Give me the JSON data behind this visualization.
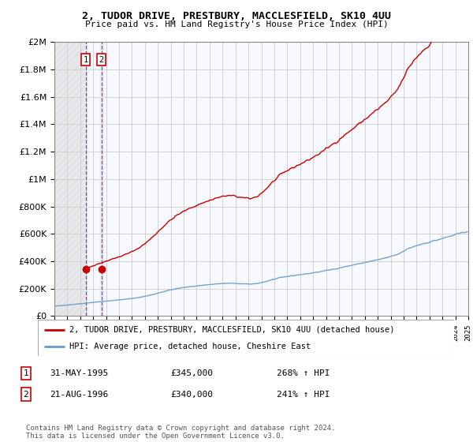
{
  "title": "2, TUDOR DRIVE, PRESTBURY, MACCLESFIELD, SK10 4UU",
  "subtitle": "Price paid vs. HM Land Registry's House Price Index (HPI)",
  "ylim": [
    0,
    2000000
  ],
  "yticks": [
    0,
    200000,
    400000,
    600000,
    800000,
    1000000,
    1200000,
    1400000,
    1600000,
    1800000,
    2000000
  ],
  "property_color": "#cc0000",
  "hpi_color": "#6699cc",
  "bg_color": "#f8f8ff",
  "grid_color": "#cccccc",
  "sale1_year": 1995.42,
  "sale1_price": 345000,
  "sale2_year": 1996.64,
  "sale2_price": 340000,
  "legend_property": "2, TUDOR DRIVE, PRESTBURY, MACCLESFIELD, SK10 4UU (detached house)",
  "legend_hpi": "HPI: Average price, detached house, Cheshire East",
  "table_rows": [
    {
      "num": "1",
      "date": "31-MAY-1995",
      "price": "£345,000",
      "hpi": "268% ↑ HPI"
    },
    {
      "num": "2",
      "date": "21-AUG-1996",
      "price": "£340,000",
      "hpi": "241% ↑ HPI"
    }
  ],
  "footer": "Contains HM Land Registry data © Crown copyright and database right 2024.\nThis data is licensed under the Open Government Licence v3.0.",
  "x_start_year": 1993,
  "x_end_year": 2025
}
